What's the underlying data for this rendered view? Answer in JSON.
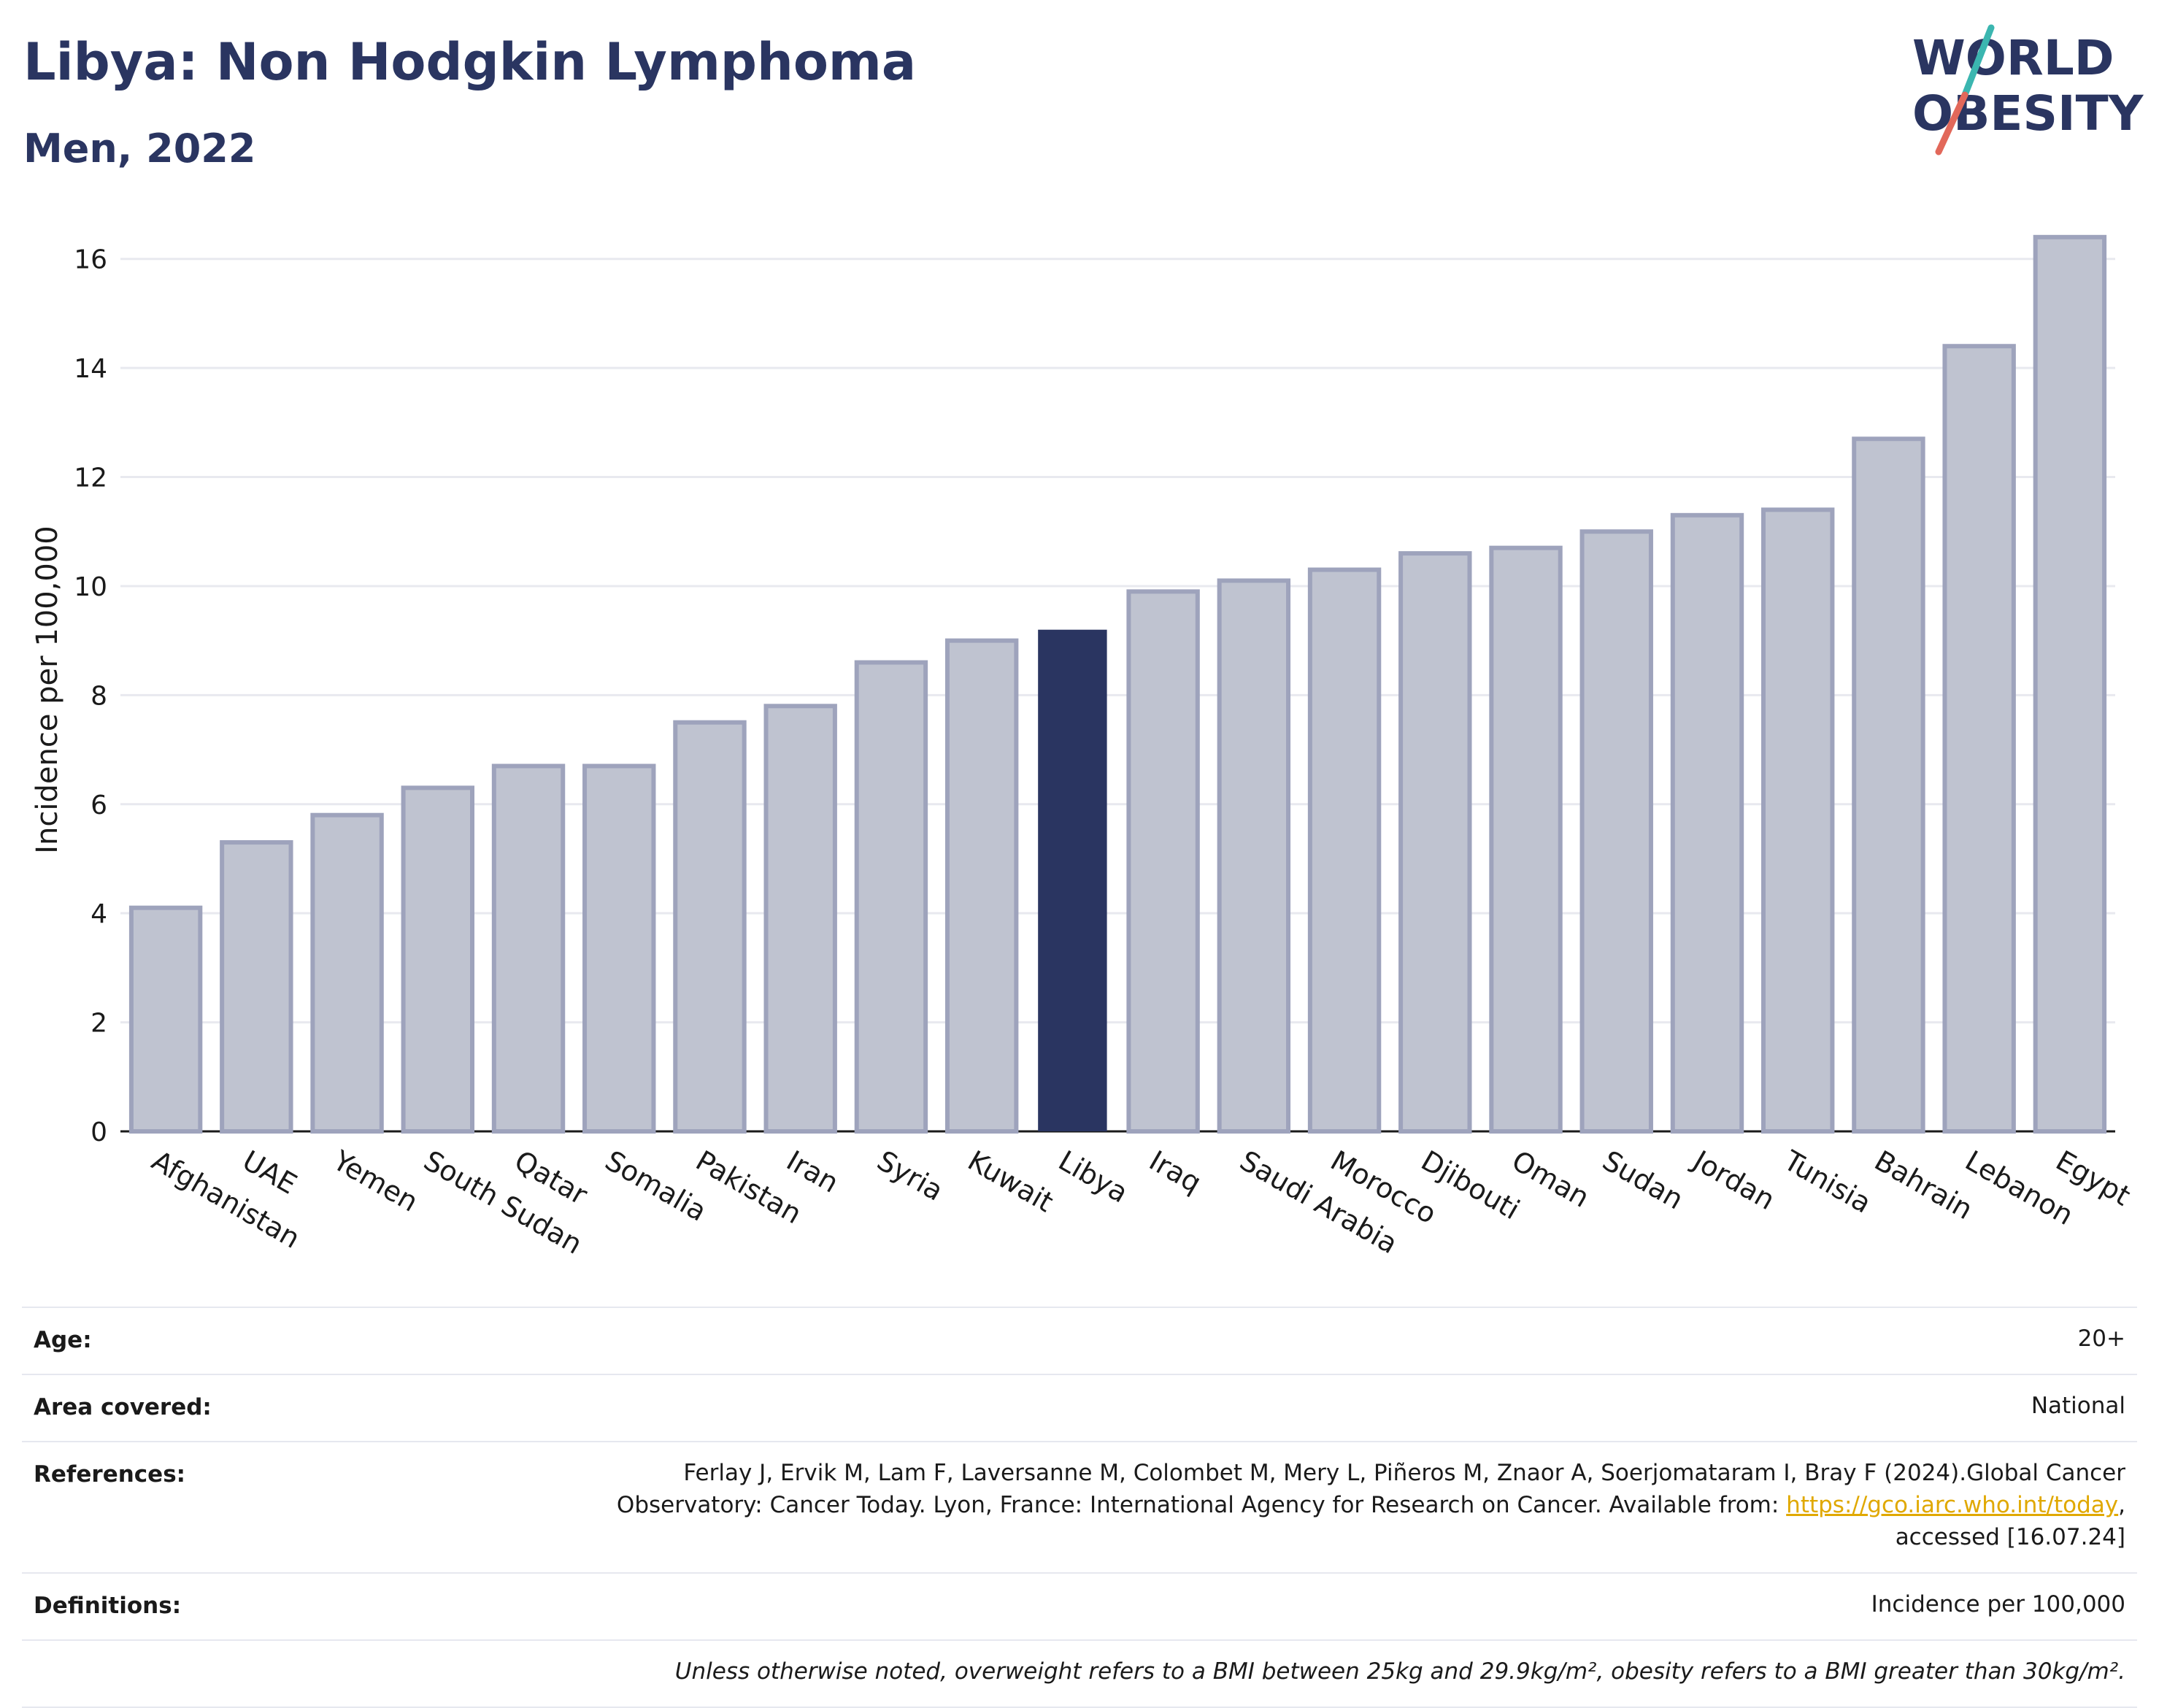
{
  "header": {
    "title": "Libya: Non Hodgkin Lymphoma",
    "subtitle": "Men, 2022"
  },
  "logo": {
    "line1": "WORLD",
    "line2": "OBESITY",
    "text_color": "#2a3561",
    "slash_top_color": "#3bb6b0",
    "slash_bottom_color": "#e2685a"
  },
  "colors": {
    "bar_fill": "#bfc3d0",
    "bar_stroke": "#9ea3bc",
    "highlight_fill": "#2a3561",
    "grid": "#e8e9ef",
    "axis": "#1a1a1a"
  },
  "chart_data": {
    "type": "bar",
    "title": "",
    "xlabel": "",
    "ylabel": "Incidence per 100,000",
    "ylim": [
      0,
      17
    ],
    "yticks": [
      0,
      2,
      4,
      6,
      8,
      10,
      12,
      14,
      16
    ],
    "grid": true,
    "highlight": "Libya",
    "categories": [
      "Afghanistan",
      "UAE",
      "Yemen",
      "South Sudan",
      "Qatar",
      "Somalia",
      "Pakistan",
      "Iran",
      "Syria",
      "Kuwait",
      "Libya",
      "Iraq",
      "Saudi Arabia",
      "Morocco",
      "Djibouti",
      "Oman",
      "Sudan",
      "Jordan",
      "Tunisia",
      "Bahrain",
      "Lebanon",
      "Egypt"
    ],
    "values": [
      4.1,
      5.3,
      5.8,
      6.3,
      6.7,
      6.7,
      7.5,
      7.8,
      8.6,
      9.0,
      9.2,
      9.9,
      10.1,
      10.3,
      10.6,
      10.7,
      11.0,
      11.3,
      11.4,
      12.7,
      14.4,
      16.4
    ]
  },
  "meta": {
    "age_label": "Age:",
    "age_value": "20+",
    "area_label": "Area covered:",
    "area_value": "National",
    "references_label": "References:",
    "references_line1": "Ferlay J, Ervik M, Lam F, Laversanne M, Colombet M, Mery L, Piñeros M, Znaor A, Soerjomataram I, Bray F (2024).Global Cancer",
    "references_line2_prefix": "Observatory: Cancer Today. Lyon, France: International Agency for Research on Cancer. Available from: ",
    "references_link": "https://gco.iarc.who.int/today",
    "references_line2_suffix": ",",
    "references_line3": "accessed [16.07.24]",
    "definitions_label": "Definitions:",
    "definitions_value": "Incidence per 100,000",
    "note": "Unless otherwise noted, overweight refers to a BMI between 25kg and 29.9kg/m², obesity refers to a BMI greater than 30kg/m²."
  }
}
